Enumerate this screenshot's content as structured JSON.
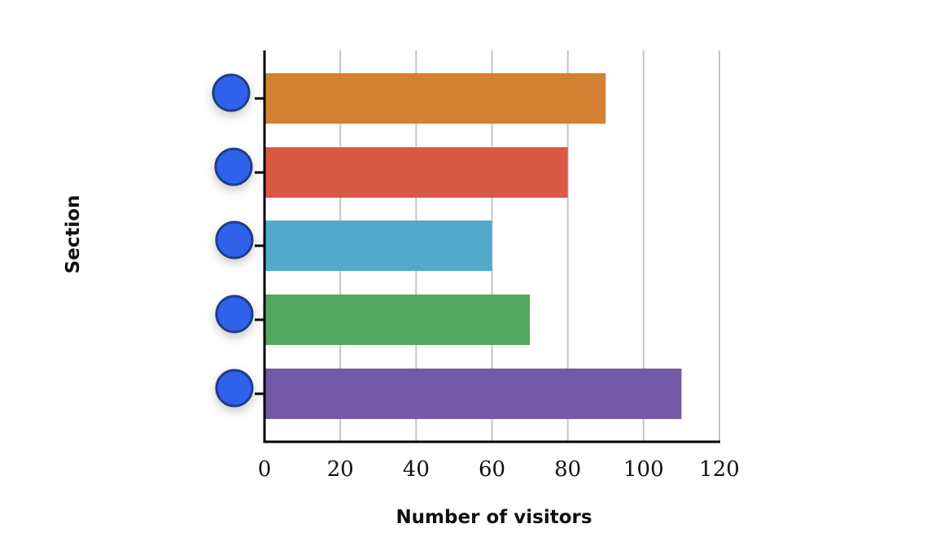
{
  "chart_data": {
    "type": "bar",
    "orientation": "horizontal",
    "categories": [
      "",
      "",
      "",
      "",
      ""
    ],
    "values": [
      90,
      80,
      60,
      70,
      110
    ],
    "bar_colors": [
      "#D38233",
      "#D95945",
      "#51AACC",
      "#52A761",
      "#7359A6"
    ],
    "xlabel": "Number of visitors",
    "ylabel": "Section",
    "xlim": [
      0,
      120
    ],
    "xticks": [
      0,
      20,
      40,
      60,
      80,
      100,
      120
    ],
    "grid": "vertical",
    "handle_color": "#2F62EA",
    "handle_border_color": "#243E86"
  }
}
